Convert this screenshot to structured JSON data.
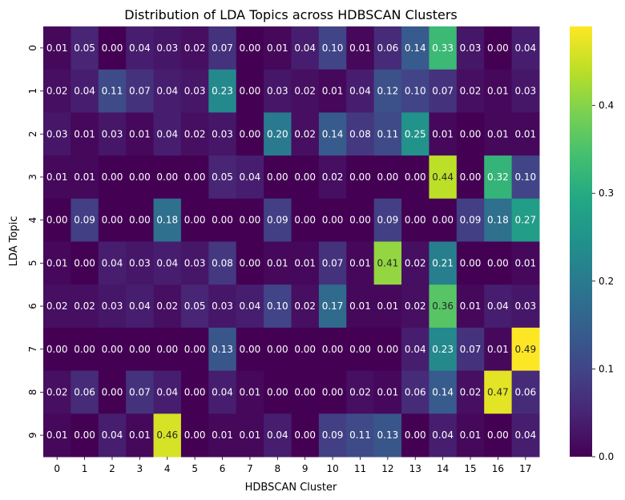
{
  "chart_data": {
    "type": "heatmap",
    "title": "Distribution of LDA Topics across HDBSCAN Clusters",
    "xlabel": "HDBSCAN Cluster",
    "ylabel": "LDA Topic",
    "x_categories": [
      "0",
      "1",
      "2",
      "3",
      "4",
      "5",
      "6",
      "7",
      "8",
      "9",
      "10",
      "11",
      "12",
      "13",
      "14",
      "15",
      "16",
      "17"
    ],
    "y_categories": [
      "0",
      "1",
      "2",
      "3",
      "4",
      "5",
      "6",
      "7",
      "8",
      "9"
    ],
    "values": [
      [
        0.01,
        0.05,
        0.0,
        0.04,
        0.03,
        0.02,
        0.07,
        0.0,
        0.01,
        0.04,
        0.1,
        0.01,
        0.06,
        0.14,
        0.33,
        0.03,
        0.0,
        0.04
      ],
      [
        0.02,
        0.04,
        0.11,
        0.07,
        0.04,
        0.03,
        0.23,
        0.0,
        0.03,
        0.02,
        0.01,
        0.04,
        0.12,
        0.1,
        0.07,
        0.02,
        0.01,
        0.03
      ],
      [
        0.03,
        0.01,
        0.03,
        0.01,
        0.04,
        0.02,
        0.03,
        0.0,
        0.2,
        0.02,
        0.14,
        0.08,
        0.11,
        0.25,
        0.01,
        0.0,
        0.01,
        0.01
      ],
      [
        0.01,
        0.01,
        0.0,
        0.0,
        0.0,
        0.0,
        0.05,
        0.04,
        0.0,
        0.0,
        0.02,
        0.0,
        0.0,
        0.0,
        0.44,
        0.0,
        0.32,
        0.1
      ],
      [
        0.0,
        0.09,
        0.0,
        0.0,
        0.18,
        0.0,
        0.0,
        0.0,
        0.09,
        0.0,
        0.0,
        0.0,
        0.09,
        0.0,
        0.0,
        0.09,
        0.18,
        0.27
      ],
      [
        0.01,
        0.0,
        0.04,
        0.03,
        0.04,
        0.03,
        0.08,
        0.0,
        0.01,
        0.01,
        0.07,
        0.01,
        0.41,
        0.02,
        0.21,
        0.0,
        0.0,
        0.01
      ],
      [
        0.02,
        0.02,
        0.03,
        0.04,
        0.02,
        0.05,
        0.03,
        0.04,
        0.1,
        0.02,
        0.17,
        0.01,
        0.01,
        0.02,
        0.36,
        0.01,
        0.04,
        0.03
      ],
      [
        0.0,
        0.0,
        0.0,
        0.0,
        0.0,
        0.0,
        0.13,
        0.0,
        0.0,
        0.0,
        0.0,
        0.0,
        0.0,
        0.04,
        0.23,
        0.07,
        0.01,
        0.49
      ],
      [
        0.02,
        0.06,
        0.0,
        0.07,
        0.04,
        0.0,
        0.04,
        0.01,
        0.0,
        0.0,
        0.0,
        0.02,
        0.01,
        0.06,
        0.14,
        0.02,
        0.47,
        0.06
      ],
      [
        0.01,
        0.0,
        0.04,
        0.01,
        0.46,
        0.0,
        0.01,
        0.01,
        0.04,
        0.0,
        0.09,
        0.11,
        0.13,
        0.0,
        0.04,
        0.01,
        0.0,
        0.04
      ]
    ],
    "colormap": "viridis",
    "vmin": 0.0,
    "vmax": 0.49,
    "colorbar_ticks": [
      "0.0",
      "0.1",
      "0.2",
      "0.3",
      "0.4"
    ],
    "colorbar_tick_values": [
      0.0,
      0.1,
      0.2,
      0.3,
      0.4
    ],
    "legend": "colorbar-right",
    "grid": false
  }
}
